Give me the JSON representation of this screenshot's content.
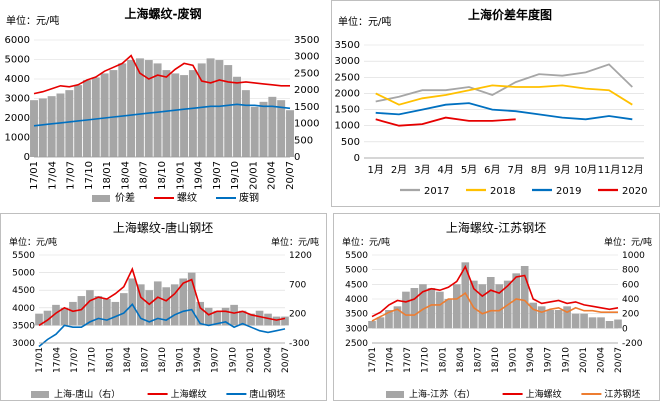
{
  "chart_data": [
    {
      "type": "line",
      "title": "上海螺纹-废钢",
      "unit_label": "单位：元/吨",
      "x_ticks": [
        "17/01",
        "17/04",
        "17/07",
        "17/10",
        "18/01",
        "18/04",
        "18/07",
        "18/10",
        "19/01",
        "19/04",
        "19/07",
        "19/10",
        "20/01",
        "20/04",
        "20/07"
      ],
      "y_left": {
        "ylim": [
          0,
          6000
        ],
        "ticks": [
          0,
          1000,
          2000,
          3000,
          4000,
          5000,
          6000
        ]
      },
      "y_right": {
        "ylim": [
          0,
          3500
        ],
        "ticks": [
          0,
          500,
          1000,
          1500,
          2000,
          2500,
          3000,
          3500
        ]
      },
      "series": [
        {
          "name": "价差",
          "kind": "area",
          "axis": "right",
          "color": "#a6a6a6",
          "values": [
            1700,
            1750,
            1820,
            1900,
            2000,
            2150,
            2300,
            2380,
            2500,
            2600,
            2800,
            2900,
            2950,
            2900,
            2800,
            2600,
            2500,
            2450,
            2600,
            2800,
            2950,
            2900,
            2750,
            2400,
            2000,
            1500,
            1650,
            1800,
            1700,
            1400
          ]
        },
        {
          "name": "螺纹",
          "kind": "line",
          "axis": "left",
          "color": "#e60000",
          "values": [
            3250,
            3350,
            3500,
            3650,
            3600,
            3700,
            3950,
            4100,
            4400,
            4600,
            4800,
            5200,
            4300,
            4000,
            4200,
            4100,
            4500,
            4800,
            4700,
            3900,
            3800,
            3950,
            3850,
            3800,
            3850,
            3800,
            3750,
            3700,
            3650,
            3650
          ]
        },
        {
          "name": "废钢",
          "kind": "line",
          "axis": "left",
          "color": "#0070c0",
          "values": [
            1600,
            1650,
            1700,
            1750,
            1800,
            1850,
            1900,
            1950,
            2000,
            2050,
            2100,
            2150,
            2200,
            2250,
            2300,
            2350,
            2400,
            2450,
            2500,
            2550,
            2600,
            2600,
            2650,
            2700,
            2650,
            2650,
            2600,
            2600,
            2550,
            2500
          ]
        }
      ]
    },
    {
      "type": "line",
      "title": "上海价差年度图",
      "unit_label": "单位：元/吨",
      "categories": [
        "1月",
        "2月",
        "3月",
        "4月",
        "5月",
        "6月",
        "7月",
        "8月",
        "9月",
        "10月",
        "11月",
        "12月"
      ],
      "ylim": [
        0,
        3500
      ],
      "y_ticks": [
        0,
        500,
        1000,
        1500,
        2000,
        2500,
        3000,
        3500
      ],
      "series": [
        {
          "name": "2017",
          "color": "#a6a6a6",
          "values": [
            1750,
            1900,
            2100,
            2100,
            2200,
            1950,
            2350,
            2600,
            2550,
            2650,
            2900,
            2200
          ]
        },
        {
          "name": "2018",
          "color": "#ffc000",
          "values": [
            2000,
            1650,
            1850,
            1950,
            2100,
            2250,
            2200,
            2200,
            2250,
            2150,
            2100,
            1650
          ]
        },
        {
          "name": "2019",
          "color": "#0070c0",
          "values": [
            1400,
            1350,
            1500,
            1650,
            1700,
            1500,
            1450,
            1350,
            1250,
            1200,
            1300,
            1200
          ]
        },
        {
          "name": "2020",
          "color": "#e60000",
          "values": [
            1200,
            1000,
            1050,
            1250,
            1150,
            1150,
            1200,
            null,
            null,
            null,
            null,
            null
          ]
        }
      ]
    },
    {
      "type": "line",
      "title": "上海螺纹-唐山钢坯",
      "unit_label_left": "单位：元/吨",
      "unit_label_right": "单位：元/吨",
      "x_ticks": [
        "17/01",
        "17/04",
        "17/07",
        "17/10",
        "18/01",
        "18/04",
        "18/07",
        "18/10",
        "19/01",
        "19/04",
        "19/07",
        "19/10",
        "20/01",
        "20/04",
        "20/07"
      ],
      "y_left": {
        "ylim": [
          3000,
          5500
        ],
        "ticks": [
          3000,
          3500,
          4000,
          4500,
          5000,
          5500
        ]
      },
      "y_right": {
        "ylim": [
          -300,
          1200
        ],
        "ticks": [
          -300,
          200,
          700,
          1200
        ]
      },
      "series": [
        {
          "name": "上海-唐山（右）",
          "kind": "area",
          "axis": "right",
          "color": "#a6a6a6",
          "values": [
            200,
            250,
            350,
            300,
            400,
            500,
            600,
            500,
            450,
            400,
            550,
            800,
            700,
            600,
            750,
            650,
            700,
            800,
            900,
            400,
            300,
            250,
            300,
            350,
            250,
            200,
            250,
            200,
            150,
            150
          ]
        },
        {
          "name": "上海螺纹",
          "kind": "line",
          "axis": "left",
          "color": "#e60000",
          "values": [
            3500,
            3650,
            3850,
            4000,
            3900,
            3950,
            4200,
            4300,
            4250,
            4400,
            4600,
            5100,
            4300,
            4100,
            4300,
            4200,
            4400,
            4700,
            4800,
            4000,
            3800,
            3900,
            3900,
            3850,
            3900,
            3800,
            3750,
            3700,
            3650,
            3700
          ]
        },
        {
          "name": "唐山钢坯",
          "kind": "line",
          "axis": "left",
          "color": "#0070c0",
          "values": [
            2900,
            3100,
            3250,
            3500,
            3450,
            3450,
            3600,
            3700,
            3650,
            3750,
            3850,
            4100,
            3700,
            3600,
            3700,
            3650,
            3800,
            3900,
            3950,
            3550,
            3500,
            3550,
            3600,
            3450,
            3550,
            3450,
            3350,
            3300,
            3350,
            3400
          ]
        }
      ]
    },
    {
      "type": "line",
      "title": "上海螺纹-江苏钢坯",
      "unit_label_left": "单位：元/吨",
      "unit_label_right": "单位：元/吨",
      "x_ticks": [
        "17/01",
        "17/04",
        "17/07",
        "17/10",
        "18/01",
        "18/04",
        "18/07",
        "18/10",
        "19/01",
        "19/04",
        "19/07",
        "19/10",
        "20/01",
        "20/04",
        "20/07"
      ],
      "y_left": {
        "ylim": [
          2500,
          5500
        ],
        "ticks": [
          2500,
          3000,
          3500,
          4000,
          4500,
          5000,
          5500
        ]
      },
      "y_right": {
        "ylim": [
          -200,
          1000
        ],
        "ticks": [
          -200,
          0,
          200,
          400,
          600,
          800,
          1000
        ]
      },
      "series": [
        {
          "name": "上海-江苏（右）",
          "kind": "area",
          "axis": "right",
          "color": "#a6a6a6",
          "values": [
            100,
            150,
            250,
            300,
            500,
            550,
            600,
            550,
            500,
            400,
            600,
            900,
            650,
            600,
            700,
            600,
            650,
            750,
            850,
            350,
            300,
            250,
            250,
            300,
            200,
            200,
            150,
            150,
            100,
            120
          ]
        },
        {
          "name": "上海螺纹",
          "kind": "line",
          "axis": "left",
          "color": "#e60000",
          "values": [
            3400,
            3550,
            3800,
            3950,
            3900,
            4000,
            4250,
            4350,
            4300,
            4400,
            4600,
            5100,
            4350,
            4100,
            4300,
            4200,
            4450,
            4750,
            4800,
            4000,
            3850,
            3900,
            3950,
            3850,
            3900,
            3800,
            3750,
            3700,
            3650,
            3700
          ]
        },
        {
          "name": "江苏钢坯",
          "kind": "line",
          "axis": "left",
          "color": "#ed7d31",
          "values": [
            3250,
            3400,
            3550,
            3650,
            3450,
            3450,
            3650,
            3800,
            3800,
            4000,
            4000,
            4200,
            3700,
            3500,
            3600,
            3600,
            3800,
            4000,
            3950,
            3650,
            3550,
            3650,
            3700,
            3550,
            3700,
            3600,
            3600,
            3550,
            3550,
            3550
          ]
        }
      ]
    }
  ]
}
